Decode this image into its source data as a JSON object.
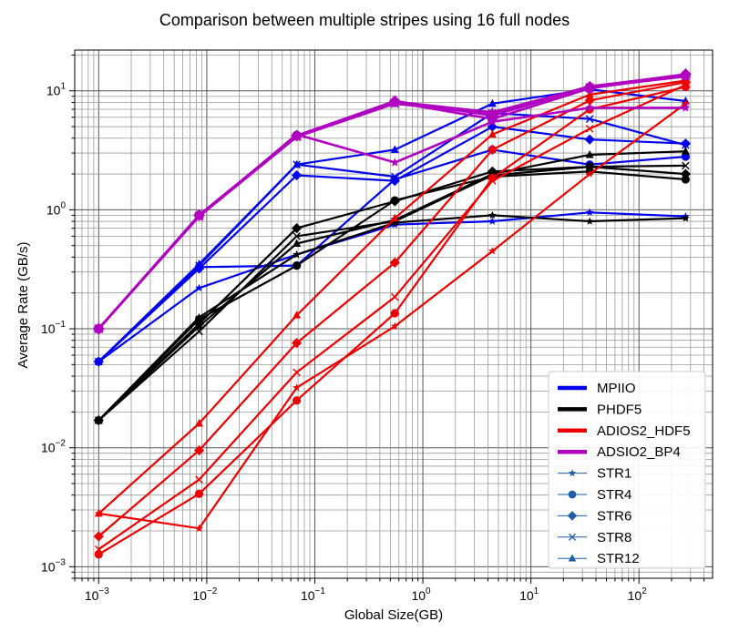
{
  "chart_data": {
    "type": "line",
    "title": "Comparison between multiple stripes using 16 full nodes",
    "xlabel": "Global Size(GB)",
    "ylabel": "Average Rate (GB/s)",
    "xscale": "log",
    "yscale": "log",
    "xlim": [
      0.0006,
      480
    ],
    "ylim": [
      0.0008,
      22
    ],
    "grid": "major-and-minor",
    "legend_position": "lower-right",
    "x": [
      0.001,
      0.0085,
      0.068,
      0.55,
      4.4,
      35,
      270
    ],
    "x_ticks": [
      {
        "value": 0.001,
        "base": "10",
        "exp": "−3"
      },
      {
        "value": 0.01,
        "base": "10",
        "exp": "−2"
      },
      {
        "value": 0.1,
        "base": "10",
        "exp": "−1"
      },
      {
        "value": 1,
        "base": "10",
        "exp": "0"
      },
      {
        "value": 10,
        "base": "10",
        "exp": "1"
      },
      {
        "value": 100,
        "base": "10",
        "exp": "2"
      }
    ],
    "y_ticks": [
      {
        "value": 0.001,
        "base": "10",
        "exp": "−3"
      },
      {
        "value": 0.01,
        "base": "10",
        "exp": "−2"
      },
      {
        "value": 0.1,
        "base": "10",
        "exp": "−1"
      },
      {
        "value": 1,
        "base": "10",
        "exp": "0"
      },
      {
        "value": 10,
        "base": "10",
        "exp": "1"
      }
    ],
    "libraries": [
      {
        "name": "MPIIO",
        "color": "#0000ee"
      },
      {
        "name": "PHDF5",
        "color": "#000000"
      },
      {
        "name": "ADIOS2_HDF5",
        "color": "#ee0000"
      },
      {
        "name": "ADSIO2_BP4",
        "color": "#b000c0"
      }
    ],
    "stripes": [
      {
        "name": "STR1",
        "marker": "star"
      },
      {
        "name": "STR4",
        "marker": "circle"
      },
      {
        "name": "STR6",
        "marker": "diamond"
      },
      {
        "name": "STR8",
        "marker": "x"
      },
      {
        "name": "STR12",
        "marker": "triangle"
      }
    ],
    "series": [
      {
        "library": "MPIIO",
        "stripe": "STR1",
        "values": [
          0.053,
          0.22,
          0.42,
          0.75,
          0.8,
          0.95,
          0.88
        ]
      },
      {
        "library": "MPIIO",
        "stripe": "STR4",
        "values": [
          0.053,
          0.33,
          0.34,
          1.8,
          3.2,
          2.4,
          2.8
        ]
      },
      {
        "library": "MPIIO",
        "stripe": "STR6",
        "values": [
          0.053,
          0.32,
          1.95,
          1.75,
          5.0,
          3.9,
          3.6
        ]
      },
      {
        "library": "MPIIO",
        "stripe": "STR8",
        "values": [
          0.053,
          0.34,
          2.4,
          1.9,
          6.5,
          5.8,
          3.5
        ]
      },
      {
        "library": "MPIIO",
        "stripe": "STR12",
        "values": [
          0.053,
          0.35,
          2.4,
          3.2,
          7.8,
          10.3,
          8.2
        ]
      },
      {
        "library": "PHDF5",
        "stripe": "STR1",
        "values": [
          0.017,
          0.125,
          0.42,
          0.78,
          0.9,
          0.8,
          0.85
        ]
      },
      {
        "library": "PHDF5",
        "stripe": "STR4",
        "values": [
          0.017,
          0.12,
          0.34,
          1.2,
          1.9,
          2.1,
          1.8
        ]
      },
      {
        "library": "PHDF5",
        "stripe": "STR6",
        "values": [
          0.017,
          0.11,
          0.7,
          1.18,
          2.1,
          2.3,
          2.0
        ]
      },
      {
        "library": "PHDF5",
        "stripe": "STR8",
        "values": [
          0.017,
          0.095,
          0.6,
          0.8,
          1.95,
          2.3,
          2.35
        ]
      },
      {
        "library": "PHDF5",
        "stripe": "STR12",
        "values": [
          0.017,
          0.105,
          0.52,
          0.82,
          2.0,
          2.9,
          3.1
        ]
      },
      {
        "library": "ADIOS2_HDF5",
        "stripe": "STR1",
        "values": [
          0.0028,
          0.0021,
          0.032,
          0.105,
          0.45,
          2.0,
          7.8
        ]
      },
      {
        "library": "ADIOS2_HDF5",
        "stripe": "STR4",
        "values": [
          0.00127,
          0.0041,
          0.025,
          0.135,
          1.85,
          7.0,
          10.8
        ]
      },
      {
        "library": "ADIOS2_HDF5",
        "stripe": "STR6",
        "values": [
          0.0018,
          0.0095,
          0.076,
          0.36,
          3.2,
          8.3,
          11.8
        ]
      },
      {
        "library": "ADIOS2_HDF5",
        "stripe": "STR8",
        "values": [
          0.0014,
          0.0054,
          0.043,
          0.185,
          1.75,
          4.8,
          11.2
        ]
      },
      {
        "library": "ADIOS2_HDF5",
        "stripe": "STR12",
        "values": [
          0.0028,
          0.016,
          0.13,
          0.85,
          4.3,
          9.3,
          12.2
        ]
      },
      {
        "library": "ADSIO2_BP4",
        "stripe": "STR1",
        "values": [
          0.1,
          0.88,
          4.3,
          2.5,
          5.5,
          7.2,
          7.2
        ]
      },
      {
        "library": "ADSIO2_BP4",
        "stripe": "STR4",
        "values": [
          0.1,
          0.9,
          4.2,
          8.0,
          5.8,
          10.5,
          13.5
        ]
      },
      {
        "library": "ADSIO2_BP4",
        "stripe": "STR6",
        "values": [
          0.1,
          0.9,
          4.2,
          8.2,
          6.2,
          10.8,
          13.8
        ]
      },
      {
        "library": "ADSIO2_BP4",
        "stripe": "STR8",
        "values": [
          0.1,
          0.88,
          4.1,
          7.8,
          6.4,
          10.7,
          13.2
        ]
      },
      {
        "library": "ADSIO2_BP4",
        "stripe": "STR12",
        "values": [
          0.1,
          0.9,
          4.2,
          8.1,
          6.6,
          10.9,
          13.6
        ]
      }
    ]
  }
}
